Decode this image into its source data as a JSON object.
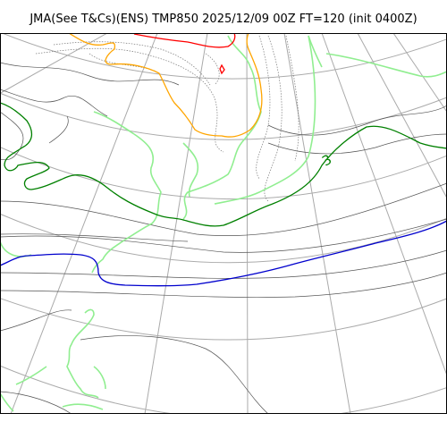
{
  "title": "JMA(See T&Cs)(ENS) TMP850 2025/12/09 00Z FT=120 (init 0400Z)",
  "contour_label": "3",
  "colors": {
    "grid": "#aaaaaa",
    "coastline": "#90ee90",
    "isotherm_thin": "#555555",
    "isotherm_dotted": "#777777",
    "contour_green": "#008000",
    "contour_blue": "#0000cd",
    "contour_orange": "#ffa500",
    "contour_red": "#ff0000"
  }
}
